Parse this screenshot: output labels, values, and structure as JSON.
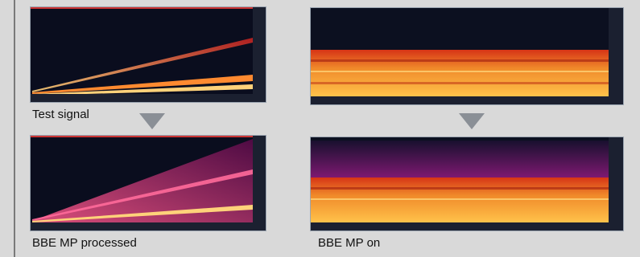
{
  "captions": {
    "test_signal": "Test signal",
    "bbe_mp_processed": "BBE MP processed",
    "bbe_mp_on": "BBE MP on"
  },
  "colors": {
    "background": "#d9d9d9",
    "spectro_bg": "#0c1020",
    "arrow": "#8a8f96",
    "hot": "#ffb23a",
    "mid": "#e0441a",
    "cool": "#7a1a6a"
  },
  "icons": {
    "arrow": "down-triangle-icon"
  }
}
